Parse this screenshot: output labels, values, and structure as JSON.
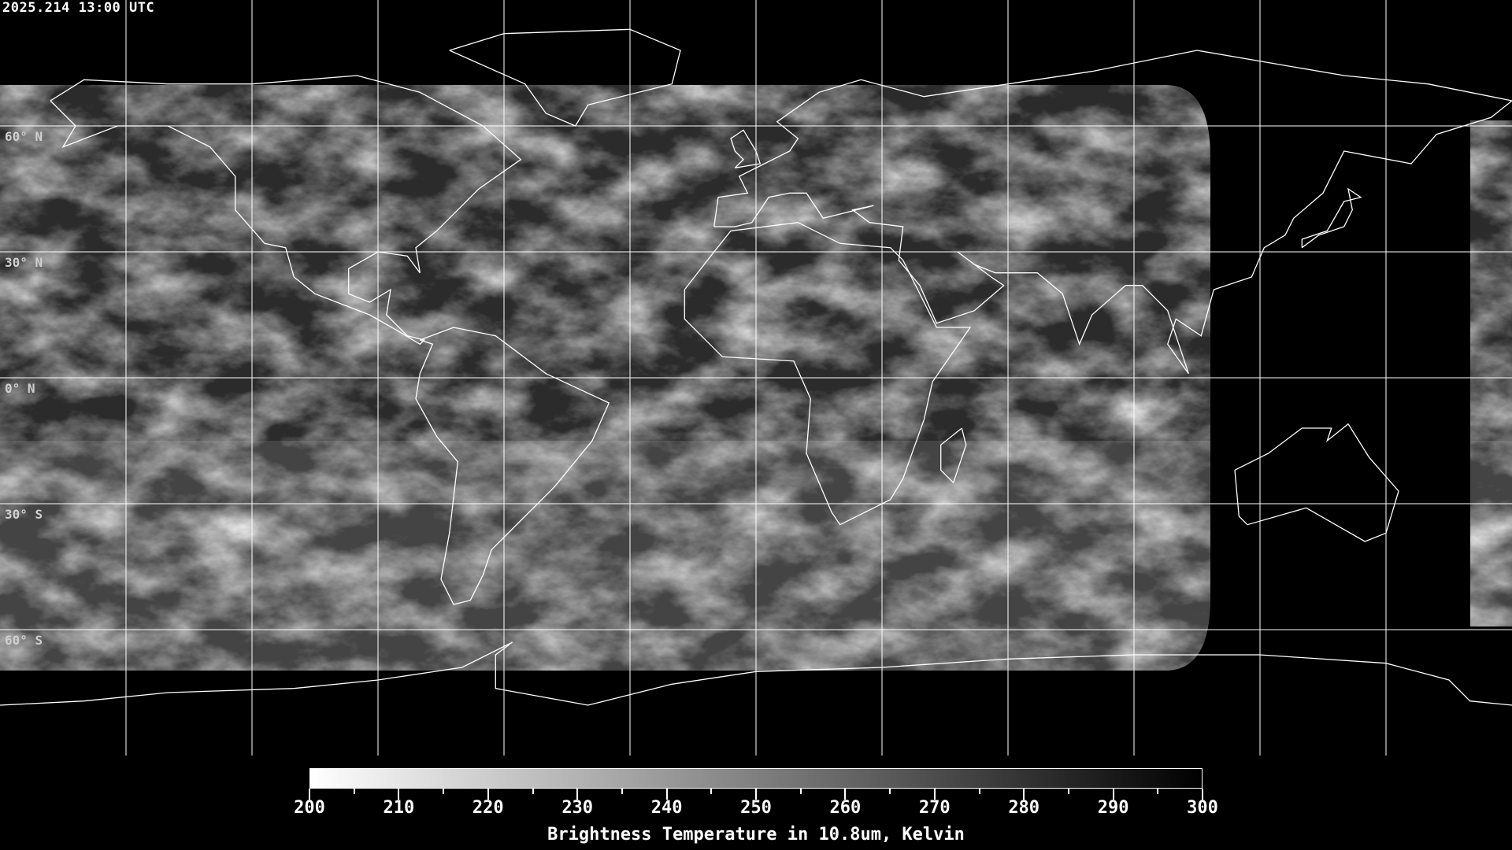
{
  "header": {
    "timestamp": "2025.214 13:00 UTC"
  },
  "map": {
    "projection": "equirectangular",
    "lon_range": [
      -180,
      180
    ],
    "lat_range": [
      -90,
      90
    ],
    "grid_spacing_deg": 30,
    "lat_labels": [
      {
        "lat": 60,
        "label": "60° N"
      },
      {
        "lat": 30,
        "label": "30° N"
      },
      {
        "lat": 0,
        "label": "0° N"
      },
      {
        "lat": -30,
        "label": "30° S"
      },
      {
        "lat": -60,
        "label": "60° S"
      }
    ],
    "coastline_color": "#ffffff",
    "grid_color": "#ffffff"
  },
  "colorbar": {
    "min": 200,
    "max": 300,
    "colormap": "white-to-black grayscale",
    "tick_labels": [
      "200",
      "210",
      "220",
      "230",
      "240",
      "250",
      "260",
      "270",
      "280",
      "290",
      "300"
    ],
    "title": "Brightness Temperature in 10.8um, Kelvin"
  }
}
